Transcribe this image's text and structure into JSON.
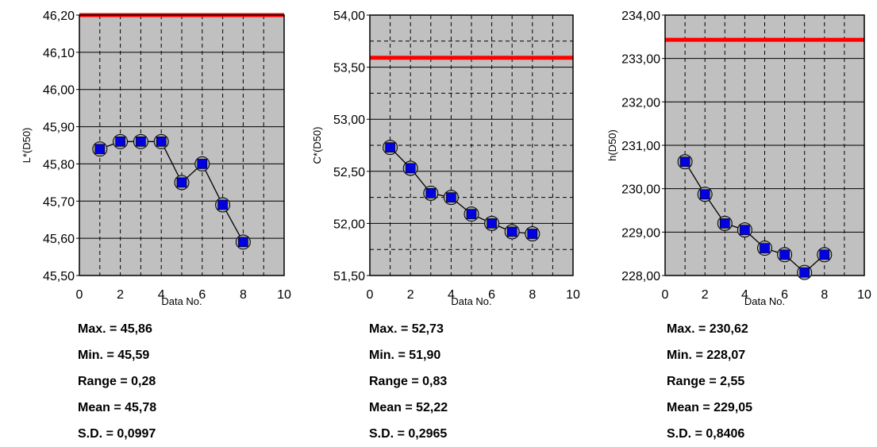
{
  "chart_data": [
    {
      "type": "line",
      "ylabel": "L*(D50)",
      "xlabel": "Data No.",
      "x": [
        1,
        2,
        3,
        4,
        5,
        6,
        7,
        8
      ],
      "values": [
        45.84,
        45.86,
        45.86,
        45.86,
        45.75,
        45.8,
        45.69,
        45.59
      ],
      "xlim": [
        0,
        10
      ],
      "ylim": [
        45.5,
        46.2
      ],
      "x_ticks": [
        "0",
        "2",
        "4",
        "6",
        "8",
        "10"
      ],
      "y_ticks": [
        "45,50",
        "45,60",
        "45,70",
        "45,80",
        "45,90",
        "46,00",
        "46,10",
        "46,20"
      ],
      "y_tick_values": [
        45.5,
        45.6,
        45.7,
        45.8,
        45.9,
        46.0,
        46.1,
        46.2
      ],
      "reference_line": 46.2,
      "grid": true,
      "colors": {
        "plot_bg": "#c0c0c0",
        "marker": "#0000e0",
        "reference": "#ff0000"
      }
    },
    {
      "type": "line",
      "ylabel": "C*(D50)",
      "xlabel": "Data No.",
      "x": [
        1,
        2,
        3,
        4,
        5,
        6,
        7,
        8
      ],
      "values": [
        52.73,
        52.53,
        52.29,
        52.25,
        52.09,
        52.0,
        51.92,
        51.9
      ],
      "xlim": [
        0,
        10
      ],
      "ylim": [
        51.5,
        54.0
      ],
      "x_ticks": [
        "0",
        "2",
        "4",
        "6",
        "8",
        "10"
      ],
      "y_ticks": [
        "51,50",
        "52,00",
        "52,50",
        "53,00",
        "53,50",
        "54,00"
      ],
      "y_tick_values": [
        51.5,
        52.0,
        52.5,
        53.0,
        53.5,
        54.0
      ],
      "reference_line": 53.59,
      "grid": true,
      "colors": {
        "plot_bg": "#c0c0c0",
        "marker": "#0000e0",
        "reference": "#ff0000"
      }
    },
    {
      "type": "line",
      "ylabel": "h(D50)",
      "xlabel": "Data No.",
      "x": [
        1,
        2,
        3,
        4,
        5,
        6,
        7,
        8
      ],
      "values": [
        230.62,
        229.87,
        229.2,
        229.05,
        228.63,
        228.48,
        228.07,
        228.48
      ],
      "xlim": [
        0,
        10
      ],
      "ylim": [
        228.0,
        234.0
      ],
      "x_ticks": [
        "0",
        "2",
        "4",
        "6",
        "8",
        "10"
      ],
      "y_ticks": [
        "228,00",
        "229,00",
        "230,00",
        "231,00",
        "232,00",
        "233,00",
        "234,00"
      ],
      "y_tick_values": [
        228,
        229,
        230,
        231,
        232,
        233,
        234
      ],
      "reference_line": 233.43,
      "grid": true,
      "colors": {
        "plot_bg": "#c0c0c0",
        "marker": "#0000e0",
        "reference": "#ff0000"
      }
    }
  ],
  "stats": [
    {
      "max": "Max. = 45,86",
      "min": "Min. = 45,59",
      "range": "Range = 0,28",
      "mean": "Mean = 45,78",
      "sd": "S.D. = 0,0997"
    },
    {
      "max": "Max. = 52,73",
      "min": "Min. = 51,90",
      "range": "Range = 0,83",
      "mean": "Mean = 52,22",
      "sd": "S.D. = 0,2965"
    },
    {
      "max": "Max. = 230,62",
      "min": "Min. = 228,07",
      "range": "Range = 2,55",
      "mean": "Mean = 229,05",
      "sd": "S.D. = 0,8406"
    }
  ]
}
